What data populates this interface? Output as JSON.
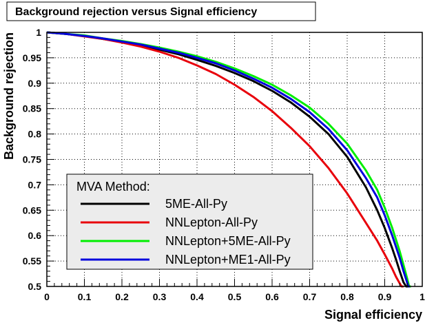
{
  "chart_data": {
    "type": "line",
    "title": "Background rejection versus Signal efficiency",
    "xlabel": "Signal efficiency",
    "ylabel": "Background rejection",
    "xlim": [
      0,
      1
    ],
    "ylim": [
      0.5,
      1
    ],
    "xticks": [
      "0",
      "0.1",
      "0.2",
      "0.3",
      "0.4",
      "0.5",
      "0.6",
      "0.7",
      "0.8",
      "0.9",
      "1"
    ],
    "yticks": [
      "0.5",
      "0.55",
      "0.6",
      "0.65",
      "0.7",
      "0.75",
      "0.8",
      "0.85",
      "0.9",
      "0.95",
      "1"
    ],
    "grid": true,
    "legend": {
      "title": "MVA Method:",
      "placement": "bottom-left"
    },
    "series": [
      {
        "name": "5ME-All-Py",
        "color": "#000000",
        "x": [
          0,
          0.05,
          0.1,
          0.15,
          0.2,
          0.25,
          0.3,
          0.35,
          0.4,
          0.45,
          0.5,
          0.55,
          0.6,
          0.65,
          0.7,
          0.75,
          0.8,
          0.85,
          0.88,
          0.9,
          0.92,
          0.93,
          0.94,
          0.95,
          0.957,
          0.965
        ],
        "y": [
          1,
          0.997,
          0.993,
          0.987,
          0.981,
          0.974,
          0.966,
          0.957,
          0.946,
          0.934,
          0.92,
          0.904,
          0.885,
          0.862,
          0.834,
          0.8,
          0.755,
          0.695,
          0.65,
          0.615,
          0.575,
          0.553,
          0.53,
          0.508,
          0.5,
          0.5
        ]
      },
      {
        "name": "NNLepton-All-Py",
        "color": "#e8000b",
        "x": [
          0,
          0.05,
          0.1,
          0.15,
          0.2,
          0.25,
          0.3,
          0.35,
          0.4,
          0.45,
          0.5,
          0.55,
          0.6,
          0.65,
          0.7,
          0.75,
          0.8,
          0.85,
          0.88,
          0.9,
          0.92,
          0.93,
          0.94,
          0.945,
          0.95
        ],
        "y": [
          1,
          0.997,
          0.992,
          0.987,
          0.98,
          0.972,
          0.962,
          0.95,
          0.935,
          0.918,
          0.897,
          0.873,
          0.845,
          0.812,
          0.776,
          0.733,
          0.683,
          0.625,
          0.59,
          0.563,
          0.535,
          0.519,
          0.506,
          0.5,
          0.5
        ]
      },
      {
        "name": "NNLepton+5ME-All-Py",
        "color": "#00ee00",
        "x": [
          0,
          0.05,
          0.1,
          0.15,
          0.2,
          0.25,
          0.3,
          0.35,
          0.4,
          0.45,
          0.5,
          0.55,
          0.6,
          0.65,
          0.7,
          0.75,
          0.8,
          0.85,
          0.88,
          0.9,
          0.92,
          0.94,
          0.95,
          0.96,
          0.965,
          0.97
        ],
        "y": [
          1,
          0.997,
          0.994,
          0.988,
          0.983,
          0.977,
          0.97,
          0.962,
          0.953,
          0.942,
          0.929,
          0.914,
          0.897,
          0.876,
          0.852,
          0.82,
          0.781,
          0.728,
          0.69,
          0.655,
          0.615,
          0.569,
          0.542,
          0.515,
          0.5,
          0.5
        ]
      },
      {
        "name": "NNLepton+ME1-All-Py",
        "color": "#0000dd",
        "x": [
          0,
          0.05,
          0.1,
          0.15,
          0.2,
          0.25,
          0.3,
          0.35,
          0.4,
          0.45,
          0.5,
          0.55,
          0.6,
          0.65,
          0.7,
          0.75,
          0.8,
          0.85,
          0.88,
          0.9,
          0.92,
          0.94,
          0.95,
          0.96,
          0.963,
          0.967
        ],
        "y": [
          1,
          0.997,
          0.993,
          0.988,
          0.982,
          0.976,
          0.968,
          0.96,
          0.95,
          0.939,
          0.925,
          0.909,
          0.891,
          0.869,
          0.843,
          0.81,
          0.768,
          0.713,
          0.675,
          0.64,
          0.6,
          0.556,
          0.53,
          0.507,
          0.5,
          0.5
        ]
      }
    ]
  }
}
